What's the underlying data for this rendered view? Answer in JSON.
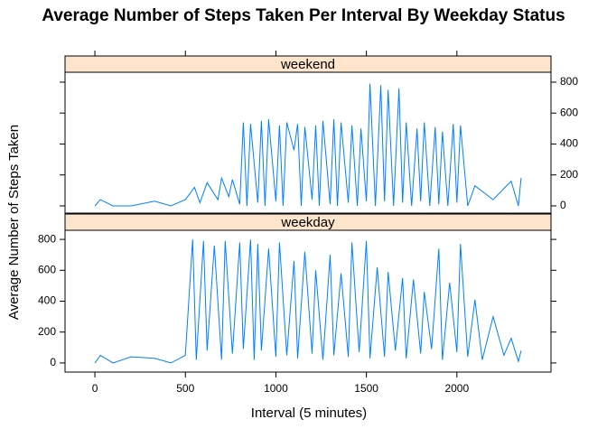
{
  "chart_data": {
    "type": "line",
    "title": "Average Number of Steps Taken Per Interval By Weekday Status",
    "x_label": "Interval (5 minutes)",
    "y_label": "Average Number of Steps Taken",
    "xlim": [
      -165,
      2520
    ],
    "xticks": [
      0,
      500,
      1000,
      1500,
      2000
    ],
    "panels": [
      {
        "strip": "weekend",
        "ylim": [
          -47,
          864
        ],
        "yticks": [
          0,
          200,
          400,
          600,
          800
        ],
        "series": [
          {
            "color": "#0080ff",
            "x": [
              0,
              30,
              100,
              200,
              330,
              420,
              500,
              550,
              580,
              620,
              680,
              700,
              740,
              760,
              800,
              820,
              840,
              860,
              900,
              920,
              940,
              960,
              1000,
              1020,
              1040,
              1060,
              1100,
              1120,
              1140,
              1160,
              1200,
              1220,
              1240,
              1260,
              1300,
              1320,
              1340,
              1360,
              1400,
              1420,
              1450,
              1470,
              1500,
              1520,
              1550,
              1580,
              1600,
              1620,
              1650,
              1680,
              1700,
              1720,
              1750,
              1780,
              1800,
              1820,
              1850,
              1880,
              1900,
              1920,
              1950,
              1980,
              2000,
              2020,
              2060,
              2100,
              2200,
              2300,
              2340,
              2355
            ],
            "values": [
              0,
              40,
              0,
              0,
              30,
              0,
              40,
              120,
              20,
              150,
              40,
              180,
              60,
              170,
              10,
              540,
              0,
              530,
              20,
              550,
              0,
              560,
              30,
              520,
              0,
              540,
              360,
              530,
              0,
              510,
              40,
              520,
              0,
              550,
              10,
              560,
              0,
              540,
              20,
              520,
              0,
              500,
              30,
              790,
              0,
              780,
              30,
              750,
              0,
              760,
              20,
              540,
              0,
              500,
              30,
              540,
              0,
              510,
              10,
              480,
              0,
              530,
              20,
              520,
              0,
              130,
              40,
              160,
              0,
              180
            ]
          }
        ]
      },
      {
        "strip": "weekday",
        "ylim": [
          -59,
          859
        ],
        "yticks": [
          0,
          200,
          400,
          600,
          800
        ],
        "series": [
          {
            "color": "#0080ff",
            "x": [
              0,
              30,
              100,
              200,
              330,
              420,
              500,
              540,
              560,
              600,
              620,
              660,
              700,
              720,
              760,
              800,
              820,
              860,
              880,
              900,
              920,
              960,
              1000,
              1020,
              1060,
              1100,
              1120,
              1160,
              1200,
              1220,
              1260,
              1300,
              1320,
              1360,
              1400,
              1420,
              1460,
              1500,
              1520,
              1560,
              1600,
              1620,
              1660,
              1700,
              1720,
              1760,
              1800,
              1820,
              1860,
              1900,
              1920,
              1960,
              2000,
              2020,
              2060,
              2100,
              2140,
              2200,
              2260,
              2300,
              2340,
              2355
            ],
            "values": [
              0,
              50,
              0,
              40,
              30,
              0,
              50,
              800,
              20,
              790,
              80,
              760,
              20,
              790,
              60,
              780,
              90,
              800,
              20,
              770,
              80,
              740,
              40,
              780,
              50,
              660,
              30,
              720,
              60,
              600,
              20,
              700,
              50,
              580,
              40,
              780,
              70,
              790,
              30,
              620,
              40,
              590,
              80,
              550,
              30,
              540,
              60,
              460,
              90,
              740,
              20,
              520,
              70,
              770,
              40,
              410,
              20,
              300,
              50,
              160,
              10,
              80
            ]
          }
        ]
      }
    ]
  }
}
